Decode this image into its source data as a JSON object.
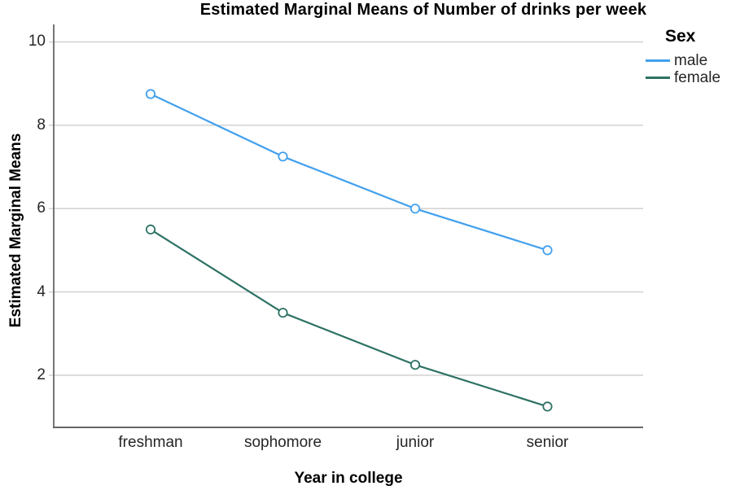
{
  "chart_data": {
    "type": "line",
    "title": "Estimated Marginal Means of Number of drinks per week",
    "xlabel": "Year in college",
    "ylabel": "Estimated Marginal Means",
    "categories": [
      "freshman",
      "sophomore",
      "junior",
      "senior"
    ],
    "series": [
      {
        "name": "male",
        "color": "#42A0EE",
        "values": [
          8.75,
          7.25,
          6.0,
          5.0
        ]
      },
      {
        "name": "female",
        "color": "#2E7265",
        "values": [
          5.5,
          3.5,
          2.25,
          1.25
        ]
      }
    ],
    "yticks": [
      2,
      4,
      6,
      8,
      10
    ],
    "ylim": [
      0.75,
      10.42
    ],
    "grid": true,
    "marker": "open-circle",
    "legend": {
      "title": "Sex",
      "position": "top-right"
    }
  },
  "colors": {
    "background": "#FFFFFF",
    "gridline": "#D2D2D2",
    "axis": "#666666",
    "tick_label": "#262626",
    "text": "#000000"
  }
}
